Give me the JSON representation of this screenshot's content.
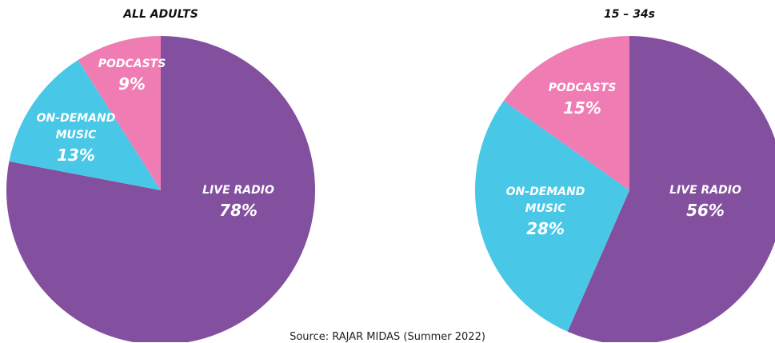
{
  "chart_data": [
    {
      "type": "pie",
      "title": "ALL ADULTS",
      "categories": [
        "LIVE RADIO",
        "ON-DEMAND MUSIC",
        "PODCASTS"
      ],
      "values": [
        78,
        13,
        9
      ],
      "value_labels": [
        "78%",
        "13%",
        "9%"
      ],
      "colors": [
        "#8350a0",
        "#48c8e6",
        "#f07cb4"
      ]
    },
    {
      "type": "pie",
      "title": "15 – 34s",
      "categories": [
        "LIVE RADIO",
        "ON-DEMAND MUSIC",
        "PODCASTS"
      ],
      "values": [
        56,
        28,
        15
      ],
      "value_labels": [
        "56%",
        "28%",
        "15%"
      ],
      "colors": [
        "#8350a0",
        "#48c8e6",
        "#f07cb4"
      ]
    }
  ],
  "source": "Source: RAJAR MIDAS (Summer 2022)"
}
